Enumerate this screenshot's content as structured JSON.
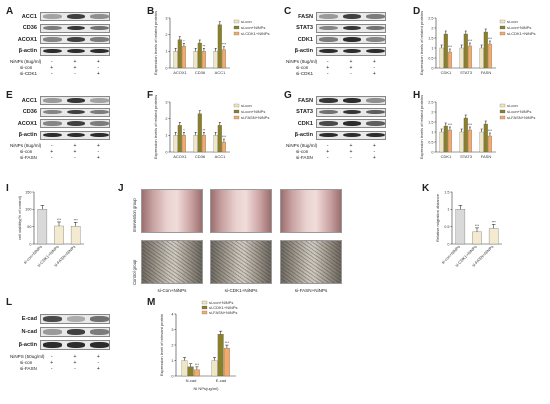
{
  "letters": [
    "A",
    "B",
    "C",
    "D",
    "E",
    "F",
    "G",
    "H",
    "I",
    "J",
    "K",
    "L",
    "M"
  ],
  "blots": {
    "A": {
      "proteins": [
        "ACC1",
        "CD36",
        "ACOX1",
        "β-actin"
      ],
      "cond": [
        "NiNPs (8ug/ml)",
        "si-con",
        "si-CDK1"
      ],
      "signs": [
        [
          "-",
          "+",
          "+"
        ],
        [
          "+",
          "+",
          "-"
        ],
        [
          "-",
          "-",
          "+"
        ]
      ]
    },
    "C": {
      "proteins": [
        "FASN",
        "STAT3",
        "CDK1",
        "β-actin"
      ],
      "cond": [
        "NiNPs (8ug/ml)",
        "si-con",
        "si-CDK1"
      ],
      "signs": [
        [
          "-",
          "+",
          "+"
        ],
        [
          "+",
          "+",
          "-"
        ],
        [
          "-",
          "-",
          "+"
        ]
      ]
    },
    "E": {
      "proteins": [
        "ACC1",
        "CD36",
        "ACOX1",
        "β-actin"
      ],
      "cond": [
        "NiNPs (8ug/ml)",
        "si-con",
        "si-FASN"
      ],
      "signs": [
        [
          "-",
          "+",
          "+"
        ],
        [
          "+",
          "+",
          "-"
        ],
        [
          "-",
          "-",
          "+"
        ]
      ]
    },
    "G": {
      "proteins": [
        "FASN",
        "STAT3",
        "CDK1",
        "β-actin"
      ],
      "cond": [
        "NiNPs (8ug/ml)",
        "si-con",
        "si-FASN"
      ],
      "signs": [
        [
          "-",
          "+",
          "+"
        ],
        [
          "+",
          "+",
          "-"
        ],
        [
          "-",
          "-",
          "+"
        ]
      ]
    },
    "L": {
      "proteins": [
        "E-cad",
        "N-cad",
        "β-actin"
      ],
      "cond": [
        "NiNPS (50ug/ml)",
        "si-con",
        "si-FASN"
      ],
      "signs": [
        [
          "-",
          "+",
          "+"
        ],
        [
          "+",
          "+",
          "-"
        ],
        [
          "-",
          "-",
          "+"
        ]
      ]
    }
  },
  "wound": {
    "side_labels": [
      "Intervention group",
      "Control group"
    ],
    "captions": [
      "si-Con+NiNPs",
      "si-CDK1+NiNPs",
      "si-FASN+NiNPs"
    ]
  },
  "colors": {
    "c1": "#efe7c4",
    "c2": "#8a7f2a",
    "c3": "#f2ab6c"
  },
  "chart_data": [
    {
      "id": "B",
      "type": "bar",
      "ylabel": "Expression levels of related proteins",
      "ylim": [
        0,
        3
      ],
      "yticks": [
        0,
        1,
        2,
        3
      ],
      "legend": [
        "si-con",
        "si-con+NiNPs",
        "si-CDK1+NiNPs"
      ],
      "categories": [
        "ACOX1",
        "CD36",
        "ACC1"
      ],
      "series": [
        {
          "name": "si-con",
          "values": [
            1.0,
            1.0,
            1.0
          ]
        },
        {
          "name": "si-con+NiNPs",
          "values": [
            1.7,
            1.5,
            2.6
          ]
        },
        {
          "name": "si-CDK1+NiNPs",
          "values": [
            1.3,
            1.0,
            1.1
          ]
        }
      ],
      "stars": [
        "*",
        "**",
        "***"
      ]
    },
    {
      "id": "D",
      "type": "bar",
      "ylabel": "Expression levels of related proteins",
      "ylim": [
        0,
        2.5
      ],
      "yticks": [
        0,
        0.5,
        1,
        1.5,
        2,
        2.5
      ],
      "legend": [
        "si-con",
        "si-con+NiNPs",
        "si-CDK1+NiNPs"
      ],
      "categories": [
        "CDK1",
        "STAT3",
        "FASN"
      ],
      "series": [
        {
          "name": "si-con",
          "values": [
            1.0,
            1.0,
            1.0
          ]
        },
        {
          "name": "si-con+NiNPs",
          "values": [
            1.7,
            1.7,
            1.8
          ]
        },
        {
          "name": "si-CDK1+NiNPs",
          "values": [
            0.8,
            1.1,
            1.2
          ]
        }
      ],
      "stars": [
        "***",
        "***",
        "***"
      ]
    },
    {
      "id": "F",
      "type": "bar",
      "ylabel": "Expression levels of related proteins",
      "ylim": [
        0,
        3
      ],
      "yticks": [
        0,
        1,
        2,
        3
      ],
      "legend": [
        "si-con",
        "si-con+NiNPs",
        "si-FASN+NiNPs"
      ],
      "categories": [
        "ACOX1",
        "CD36",
        "ACC1"
      ],
      "series": [
        {
          "name": "si-con",
          "values": [
            1.0,
            1.0,
            1.0
          ]
        },
        {
          "name": "si-con+NiNPs",
          "values": [
            1.6,
            2.3,
            1.6
          ]
        },
        {
          "name": "si-FASN+NiNPs",
          "values": [
            1.0,
            1.0,
            0.6
          ]
        }
      ],
      "stars": [
        "*",
        "**",
        "***"
      ]
    },
    {
      "id": "H",
      "type": "bar",
      "ylabel": "Expression levels of related proteins",
      "ylim": [
        0,
        2.5
      ],
      "yticks": [
        0,
        0.5,
        1,
        1.5,
        2,
        2.5
      ],
      "legend": [
        "si-con",
        "si-con+NiNPs",
        "si-FASN+NiNPs"
      ],
      "categories": [
        "CDK1",
        "STAT3",
        "FASN"
      ],
      "series": [
        {
          "name": "si-con",
          "values": [
            1.0,
            1.0,
            1.0
          ]
        },
        {
          "name": "si-con+NiNPs",
          "values": [
            1.3,
            1.7,
            1.4
          ]
        },
        {
          "name": "si-FASN+NiNPs",
          "values": [
            1.1,
            1.1,
            0.8
          ]
        }
      ],
      "stars": [
        "***",
        "***",
        "***"
      ]
    },
    {
      "id": "I",
      "type": "bar",
      "ylabel": "cell viability(% of control)",
      "ylim": [
        0,
        150
      ],
      "yticks": [
        0,
        50,
        100,
        150
      ],
      "categories": [
        "si-con+NiNPs",
        "si-CDK1+NiNPs",
        "si-FASN+NiNPs"
      ],
      "values": [
        100,
        52,
        51
      ],
      "stars": [
        "",
        "***",
        "***"
      ]
    },
    {
      "id": "K",
      "type": "bar",
      "ylabel": "Relative migration distance",
      "ylim": [
        0,
        1.5
      ],
      "yticks": [
        0,
        0.5,
        1.0,
        1.5
      ],
      "categories": [
        "si-con+NiNPs",
        "si-CDK1+NiNPs",
        "si-FASN+NiNPs"
      ],
      "values": [
        1.0,
        0.35,
        0.45
      ],
      "stars": [
        "",
        "***",
        "***"
      ]
    },
    {
      "id": "M",
      "type": "bar",
      "ylabel": "Expression level of relevant protein",
      "xlabel": "Ni NPs(ug/ml)",
      "ylim": [
        0,
        4
      ],
      "yticks": [
        0,
        1,
        2,
        3,
        4
      ],
      "legend": [
        "si-con+NiNPs",
        "si-CDK1+NiNPs",
        "si-FASN+NiNPs"
      ],
      "categories": [
        "N-cad",
        "E-cad"
      ],
      "series": [
        {
          "name": "si-con+NiNPs",
          "values": [
            1.0,
            1.0
          ]
        },
        {
          "name": "si-CDK1+NiNPs",
          "values": [
            0.6,
            2.7
          ]
        },
        {
          "name": "si-FASN+NiNPs",
          "values": [
            0.4,
            1.8
          ]
        }
      ],
      "stars": [
        "***",
        "***"
      ]
    }
  ]
}
